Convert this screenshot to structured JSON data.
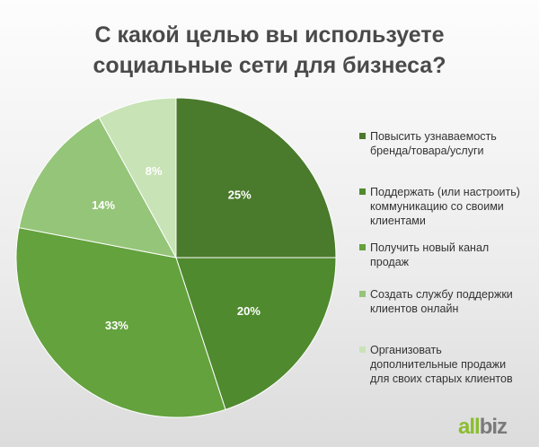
{
  "chart_data": {
    "type": "pie",
    "title": "С какой целью вы используете\nсоциальные сети для бизнеса?",
    "slices": [
      {
        "label": "Повысить узнаваемость бренда/товара/услуги",
        "value": 25,
        "display": "25%",
        "color": "#4a7a2c"
      },
      {
        "label": "Поддержать (или настроить) коммуникацию со своими клиентами",
        "value": 20,
        "display": "20%",
        "color": "#4f8a2e"
      },
      {
        "label": "Получить новый канал продаж",
        "value": 33,
        "display": "33%",
        "color": "#63a23d"
      },
      {
        "label": "Создать службу поддержки клиентов онлайн",
        "value": 14,
        "display": "14%",
        "color": "#95c579"
      },
      {
        "label": "Организовать дополнительные продажи для своих старых клиентов",
        "value": 8,
        "display": "8%",
        "color": "#c8e3b6"
      }
    ],
    "legend_position": "right"
  },
  "legend_lines": [
    [
      "Повысить узнаваемость",
      "бренда/товара/услуги"
    ],
    [
      "Поддержать (или настроить)",
      "коммуникацию со своими",
      "клиентами"
    ],
    [
      "Получить новый канал",
      "продаж"
    ],
    [
      "Создать службу поддержки",
      "клиентов онлайн"
    ],
    [
      "Организовать",
      "дополнительные продажи",
      "для своих старых клиентов"
    ]
  ],
  "logo": {
    "part1": "all",
    "part2": "biz"
  }
}
